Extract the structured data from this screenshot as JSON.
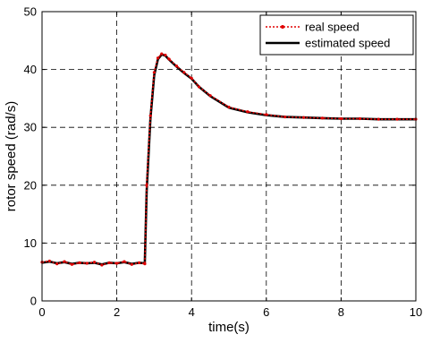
{
  "chart_data": {
    "type": "line",
    "title": "",
    "xlabel": "time(s)",
    "ylabel": "rotor speed (rad/s)",
    "xlim": [
      0,
      10
    ],
    "ylim": [
      0,
      50
    ],
    "xticks": [
      0,
      2,
      4,
      6,
      8,
      10
    ],
    "yticks": [
      0,
      10,
      20,
      30,
      40,
      50
    ],
    "grid": true,
    "grid_style": "dashed",
    "legend_position": "top-right",
    "series": [
      {
        "name": "real speed",
        "color": "#e00000",
        "style": "dotted-with-markers",
        "x": [
          0,
          0.2,
          0.4,
          0.6,
          0.8,
          1.0,
          1.2,
          1.4,
          1.6,
          1.8,
          2.0,
          2.2,
          2.4,
          2.6,
          2.75,
          2.8,
          2.9,
          3.0,
          3.1,
          3.2,
          3.3,
          3.4,
          3.6,
          3.8,
          4.0,
          4.2,
          4.5,
          5.0,
          5.5,
          6.0,
          6.5,
          7.0,
          7.5,
          8.0,
          8.5,
          9.0,
          9.5,
          10.0
        ],
        "y": [
          6.7,
          6.9,
          6.4,
          6.8,
          6.3,
          6.6,
          6.5,
          6.7,
          6.2,
          6.6,
          6.5,
          6.8,
          6.3,
          6.6,
          6.4,
          20.0,
          32.0,
          39.5,
          42.0,
          42.7,
          42.5,
          41.8,
          40.6,
          39.5,
          38.5,
          37.0,
          35.5,
          33.5,
          32.7,
          32.2,
          31.8,
          31.7,
          31.6,
          31.5,
          31.5,
          31.4,
          31.4,
          31.4
        ]
      },
      {
        "name": "estimated speed",
        "color": "#000000",
        "style": "solid",
        "x": [
          0,
          0.2,
          0.4,
          0.6,
          0.8,
          1.0,
          1.2,
          1.4,
          1.6,
          1.8,
          2.0,
          2.2,
          2.4,
          2.6,
          2.75,
          2.8,
          2.9,
          3.0,
          3.1,
          3.2,
          3.3,
          3.4,
          3.6,
          3.8,
          4.0,
          4.2,
          4.5,
          5.0,
          5.5,
          6.0,
          6.5,
          7.0,
          7.5,
          8.0,
          8.5,
          9.0,
          9.5,
          10.0
        ],
        "y": [
          6.6,
          6.8,
          6.5,
          6.7,
          6.4,
          6.6,
          6.5,
          6.6,
          6.3,
          6.6,
          6.5,
          6.7,
          6.4,
          6.6,
          6.5,
          19.0,
          31.5,
          39.0,
          41.8,
          42.6,
          42.4,
          41.7,
          40.5,
          39.4,
          38.4,
          37.0,
          35.4,
          33.4,
          32.6,
          32.1,
          31.8,
          31.7,
          31.6,
          31.5,
          31.5,
          31.4,
          31.4,
          31.4
        ]
      }
    ]
  }
}
